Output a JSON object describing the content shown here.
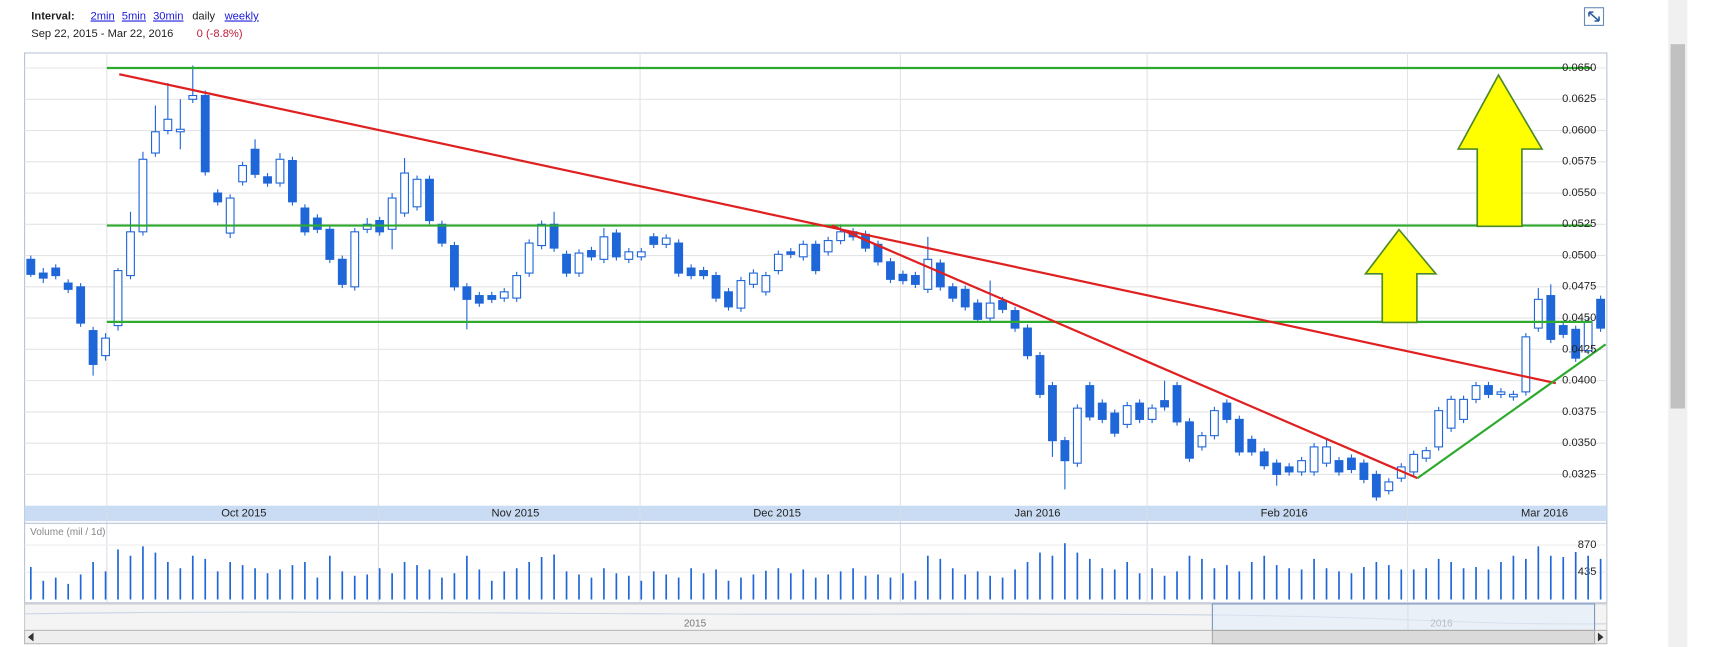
{
  "header": {
    "interval_label": "Interval:",
    "intervals": [
      "2min",
      "5min",
      "30min",
      "daily",
      "weekly"
    ],
    "range": "Sep 22, 2015 - Mar 22, 2016",
    "change": "0 (-8.8%)"
  },
  "chart_data": {
    "type": "candlestick",
    "color": "#1f66d8",
    "xlim": [
      -0.5,
      126.5
    ],
    "xticks": [
      {
        "value": 6.1,
        "label": "Oct 2015"
      },
      {
        "value": 27.9,
        "label": "Nov 2015"
      },
      {
        "value": 48.9,
        "label": "Dec 2015"
      },
      {
        "value": 69.8,
        "label": "Jan 2016"
      },
      {
        "value": 89.6,
        "label": "Feb 2016"
      },
      {
        "value": 110.5,
        "label": "Mar 2016"
      }
    ],
    "ylim": [
      0.03,
      0.0662
    ],
    "yticks": [
      0.0325,
      {
        "value": 0.035,
        "label": "0.0350"
      },
      0.0375,
      {
        "value": 0.04,
        "label": "0.0400"
      },
      0.0425,
      {
        "value": 0.045,
        "label": "0.0450"
      },
      0.0475,
      {
        "value": 0.05,
        "label": "0.0500"
      },
      0.0525,
      {
        "value": 0.055,
        "label": "0.0550"
      },
      0.0575,
      {
        "value": 0.06,
        "label": "0.0600"
      },
      0.0625,
      {
        "value": 0.065,
        "label": "0.0650"
      }
    ],
    "grid": true,
    "open": [
      0.0497,
      0.0486,
      0.049,
      0.0478,
      0.0475,
      0.044,
      0.042,
      0.0444,
      0.0484,
      0.0519,
      0.0582,
      0.06,
      0.0599,
      0.0625,
      0.0628,
      0.055,
      0.0518,
      0.0559,
      0.0585,
      0.0563,
      0.0558,
      0.0576,
      0.0538,
      0.053,
      0.0521,
      0.0497,
      0.0475,
      0.0521,
      0.0528,
      0.0521,
      0.0534,
      0.0539,
      0.0561,
      0.0525,
      0.0508,
      0.0475,
      0.0468,
      0.0468,
      0.0466,
      0.0466,
      0.0486,
      0.0508,
      0.0525,
      0.0501,
      0.0486,
      0.0504,
      0.0497,
      0.0518,
      0.0497,
      0.0499,
      0.0515,
      0.0509,
      0.051,
      0.049,
      0.0488,
      0.0484,
      0.0471,
      0.0458,
      0.0477,
      0.0471,
      0.0488,
      0.0503,
      0.0499,
      0.0509,
      0.0503,
      0.0512,
      0.0519,
      0.0517,
      0.0509,
      0.0495,
      0.0485,
      0.0484,
      0.0473,
      0.0494,
      0.0475,
      0.0473,
      0.0462,
      0.045,
      0.0464,
      0.0456,
      0.0442,
      0.042,
      0.0396,
      0.0352,
      0.0334,
      0.0396,
      0.0382,
      0.0374,
      0.0365,
      0.0382,
      0.0369,
      0.0384,
      0.0396,
      0.0367,
      0.0347,
      0.0356,
      0.0382,
      0.0369,
      0.0353,
      0.0343,
      0.0334,
      0.0331,
      0.0327,
      0.0327,
      0.0334,
      0.0336,
      0.0338,
      0.0334,
      0.0325,
      0.0312,
      0.0322,
      0.0327,
      0.0338,
      0.0347,
      0.0362,
      0.0369,
      0.0385,
      0.0396,
      0.0389,
      0.0387,
      0.0391,
      0.0442,
      0.0468,
      0.0444,
      0.0441,
      0.0424,
      0.0465
    ],
    "high": [
      0.05,
      0.049,
      0.0493,
      0.0481,
      0.0478,
      0.0443,
      0.0438,
      0.049,
      0.0535,
      0.0583,
      0.062,
      0.0638,
      0.0625,
      0.0652,
      0.0632,
      0.0553,
      0.0549,
      0.0575,
      0.0593,
      0.0566,
      0.0582,
      0.0579,
      0.0541,
      0.0533,
      0.0524,
      0.05,
      0.0522,
      0.053,
      0.0531,
      0.055,
      0.0578,
      0.0564,
      0.0564,
      0.0528,
      0.0511,
      0.0478,
      0.0471,
      0.0471,
      0.0474,
      0.0487,
      0.0513,
      0.0528,
      0.0535,
      0.0504,
      0.0505,
      0.0507,
      0.0522,
      0.0521,
      0.0506,
      0.0506,
      0.0518,
      0.0517,
      0.0513,
      0.0493,
      0.0491,
      0.0487,
      0.0474,
      0.0483,
      0.0489,
      0.0487,
      0.0504,
      0.0506,
      0.0512,
      0.0512,
      0.0515,
      0.0525,
      0.0522,
      0.052,
      0.0512,
      0.0498,
      0.0488,
      0.0487,
      0.0515,
      0.0497,
      0.0478,
      0.0476,
      0.0465,
      0.048,
      0.0467,
      0.0459,
      0.0445,
      0.0423,
      0.0399,
      0.0355,
      0.0381,
      0.0399,
      0.0385,
      0.0377,
      0.0383,
      0.0385,
      0.0381,
      0.04,
      0.0399,
      0.037,
      0.0359,
      0.0379,
      0.0385,
      0.0372,
      0.0356,
      0.0346,
      0.0337,
      0.0334,
      0.0339,
      0.035,
      0.0354,
      0.0339,
      0.0341,
      0.0337,
      0.0328,
      0.0322,
      0.0334,
      0.0344,
      0.0347,
      0.0379,
      0.0388,
      0.0388,
      0.0399,
      0.0399,
      0.0394,
      0.0392,
      0.0438,
      0.0474,
      0.0477,
      0.0447,
      0.0444,
      0.045,
      0.0468
    ],
    "low": [
      0.0483,
      0.0478,
      0.0481,
      0.047,
      0.0443,
      0.0404,
      0.0416,
      0.044,
      0.0481,
      0.0516,
      0.0579,
      0.0597,
      0.0585,
      0.0622,
      0.0564,
      0.054,
      0.0514,
      0.0556,
      0.0562,
      0.0555,
      0.0555,
      0.054,
      0.0516,
      0.0518,
      0.0494,
      0.0474,
      0.0472,
      0.0518,
      0.0516,
      0.0505,
      0.0531,
      0.0536,
      0.0525,
      0.0507,
      0.0472,
      0.0441,
      0.0459,
      0.0462,
      0.0463,
      0.0463,
      0.0483,
      0.0505,
      0.0503,
      0.0483,
      0.0483,
      0.0496,
      0.0494,
      0.0496,
      0.0494,
      0.0496,
      0.0506,
      0.0506,
      0.0483,
      0.0481,
      0.0481,
      0.0463,
      0.0456,
      0.0455,
      0.0474,
      0.0468,
      0.0485,
      0.0498,
      0.0496,
      0.0485,
      0.05,
      0.0509,
      0.0512,
      0.0503,
      0.0492,
      0.0478,
      0.0477,
      0.0474,
      0.047,
      0.0472,
      0.0463,
      0.0456,
      0.0446,
      0.0447,
      0.0454,
      0.0439,
      0.0417,
      0.0386,
      0.0339,
      0.0313,
      0.0331,
      0.0368,
      0.0366,
      0.0355,
      0.0362,
      0.0366,
      0.0366,
      0.0376,
      0.0364,
      0.0335,
      0.0344,
      0.0353,
      0.0366,
      0.034,
      0.034,
      0.0329,
      0.0316,
      0.0324,
      0.0324,
      0.0324,
      0.0331,
      0.0324,
      0.0326,
      0.0318,
      0.0304,
      0.0309,
      0.0319,
      0.0324,
      0.0335,
      0.0344,
      0.0359,
      0.0366,
      0.0382,
      0.0386,
      0.0386,
      0.0384,
      0.0388,
      0.0439,
      0.043,
      0.0434,
      0.0415,
      0.0421,
      0.0439
    ],
    "close": [
      0.0485,
      0.0482,
      0.0484,
      0.0473,
      0.0446,
      0.0413,
      0.0434,
      0.0488,
      0.0519,
      0.0577,
      0.0599,
      0.0609,
      0.0601,
      0.0628,
      0.0567,
      0.0543,
      0.0546,
      0.0572,
      0.0565,
      0.0558,
      0.0577,
      0.0543,
      0.0519,
      0.0521,
      0.0497,
      0.0477,
      0.0519,
      0.0525,
      0.0519,
      0.0546,
      0.0566,
      0.0561,
      0.0528,
      0.051,
      0.0475,
      0.0465,
      0.0462,
      0.0465,
      0.0471,
      0.0484,
      0.051,
      0.0525,
      0.0506,
      0.0486,
      0.0502,
      0.0499,
      0.0515,
      0.0499,
      0.0503,
      0.0503,
      0.0509,
      0.0514,
      0.0486,
      0.0484,
      0.0484,
      0.0466,
      0.0459,
      0.048,
      0.0486,
      0.0484,
      0.0501,
      0.0501,
      0.0509,
      0.0488,
      0.0512,
      0.0519,
      0.0515,
      0.0506,
      0.0495,
      0.0481,
      0.048,
      0.0477,
      0.0497,
      0.0475,
      0.0466,
      0.0459,
      0.0449,
      0.0462,
      0.0457,
      0.0442,
      0.042,
      0.0389,
      0.0352,
      0.0336,
      0.0378,
      0.0371,
      0.0369,
      0.0358,
      0.038,
      0.0369,
      0.0378,
      0.0379,
      0.0367,
      0.0338,
      0.0356,
      0.0376,
      0.0369,
      0.0343,
      0.0343,
      0.0332,
      0.0325,
      0.0327,
      0.0336,
      0.0347,
      0.0347,
      0.0327,
      0.0329,
      0.0321,
      0.0307,
      0.0319,
      0.0331,
      0.0341,
      0.0344,
      0.0376,
      0.0385,
      0.0385,
      0.0396,
      0.0389,
      0.0391,
      0.0389,
      0.0435,
      0.0465,
      0.0433,
      0.0437,
      0.0418,
      0.0447,
      0.0442
    ],
    "lines": [
      {
        "color": "#2eaa2e",
        "x": [
          6.1,
          125.3
        ],
        "y": [
          0.065,
          0.065
        ]
      },
      {
        "color": "#2eaa2e",
        "x": [
          6.1,
          125.3
        ],
        "y": [
          0.0524,
          0.0524
        ]
      },
      {
        "color": "#2eaa2e",
        "x": [
          6.1,
          125.3
        ],
        "y": [
          0.0447,
          0.0447
        ]
      },
      {
        "color": "#e02020",
        "x": [
          7.1,
          122.4
        ],
        "y": [
          0.0645,
          0.0398
        ]
      },
      {
        "color": "#e02020",
        "x": [
          64.3,
          111.3
        ],
        "y": [
          0.0524,
          0.0322
        ]
      },
      {
        "color": "#2eaa2e",
        "x": [
          111.3,
          126.4
        ],
        "y": [
          0.0322,
          0.0429
        ]
      }
    ],
    "volume": {
      "label": "Volume (mil / 1d)",
      "ylim": [
        0,
        900
      ],
      "yticks": [
        435,
        870
      ],
      "values": [
        520,
        300,
        350,
        250,
        400,
        600,
        450,
        800,
        700,
        850,
        750,
        600,
        500,
        700,
        650,
        450,
        600,
        550,
        500,
        420,
        480,
        550,
        600,
        350,
        700,
        450,
        380,
        400,
        500,
        420,
        600,
        550,
        480,
        350,
        420,
        700,
        480,
        300,
        450,
        500,
        600,
        680,
        720,
        450,
        400,
        350,
        500,
        420,
        380,
        300,
        450,
        400,
        350,
        500,
        420,
        480,
        300,
        350,
        400,
        460,
        500,
        420,
        480,
        350,
        400,
        450,
        500,
        380,
        400,
        350,
        420,
        300,
        700,
        650,
        500,
        400,
        450,
        380,
        350,
        480,
        600,
        750,
        700,
        900,
        750,
        650,
        500,
        480,
        600,
        420,
        500,
        380,
        450,
        700,
        650,
        500,
        550,
        450,
        600,
        700,
        550,
        500,
        480,
        650,
        500,
        450,
        420,
        520,
        600,
        550,
        480,
        480,
        500,
        650,
        600,
        500,
        520,
        480,
        600,
        700,
        650,
        850,
        700,
        680,
        760,
        700,
        650
      ]
    },
    "overview": {
      "labels": [
        "2015",
        "2016"
      ]
    }
  }
}
